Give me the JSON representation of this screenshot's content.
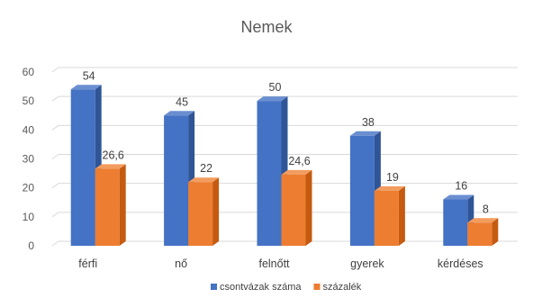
{
  "chart_data": {
    "type": "bar",
    "title": "Nemek",
    "categories": [
      "férfi",
      "nő",
      "felnőtt",
      "gyerek",
      "kérdéses"
    ],
    "series": [
      {
        "name": "csontvázak száma",
        "values": [
          54,
          45,
          50,
          38,
          16
        ],
        "labels": [
          "54",
          "45",
          "50",
          "38",
          "16"
        ],
        "color": "#4472C4",
        "top_color": "#6a8fd0",
        "side_color": "#2f5597"
      },
      {
        "name": "százalék",
        "values": [
          26.6,
          22,
          24.6,
          19,
          8
        ],
        "labels": [
          "26,6",
          "22",
          "24,6",
          "19",
          "8"
        ],
        "color": "#ED7D31",
        "top_color": "#f29c5f",
        "side_color": "#c55a11"
      }
    ],
    "y_ticks": [
      "0",
      "10",
      "20",
      "30",
      "40",
      "50",
      "60"
    ],
    "ylim": [
      0,
      60
    ],
    "grid": true,
    "legend_position": "bottom",
    "style": "3d-clustered-column"
  }
}
